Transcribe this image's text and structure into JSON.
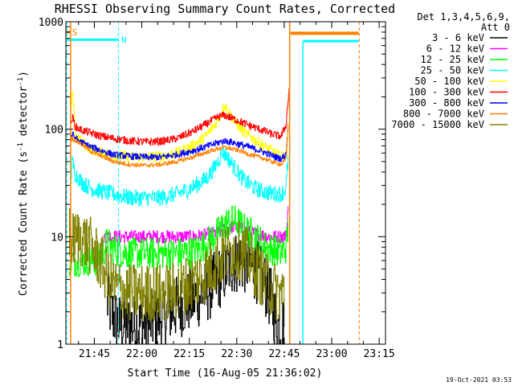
{
  "chart_data": {
    "type": "line",
    "title": "RHESSI Observing Summary Count Rates, Corrected",
    "xlabel": "Start Time (16-Aug-05 21:36:02)",
    "ylabel_main": "Corrected Count Rate (s",
    "ylabel_sup1": "-1",
    "ylabel_mid": " detector",
    "ylabel_sup2": "-1",
    "ylabel_end": ")",
    "x_unit": "minutes since 21:36:02",
    "xlim": [
      0,
      101
    ],
    "ylim": [
      1,
      1000
    ],
    "y_scale": "log",
    "x_ticks": [
      {
        "value": 9,
        "label": "21:45"
      },
      {
        "value": 24,
        "label": "22:00"
      },
      {
        "value": 39,
        "label": "22:15"
      },
      {
        "value": 54,
        "label": "22:30"
      },
      {
        "value": 69,
        "label": "22:45"
      },
      {
        "value": 84,
        "label": "23:00"
      },
      {
        "value": 99,
        "label": "23:15"
      }
    ],
    "y_ticks": [
      {
        "value": 1,
        "label": "1"
      },
      {
        "value": 10,
        "label": "10"
      },
      {
        "value": 100,
        "label": "100"
      },
      {
        "value": 1000,
        "label": "1000"
      }
    ],
    "legend": {
      "placement": "right",
      "header1": "Det 1,3,4,5,6,9,",
      "header2": "Att 0",
      "entries": [
        {
          "label": "3 - 6 keV",
          "color": "#000000"
        },
        {
          "label": "6 - 12 keV",
          "color": "#ff00ff"
        },
        {
          "label": "12 - 25 keV",
          "color": "#00ff00"
        },
        {
          "label": "25 - 50 keV",
          "color": "#00ffff"
        },
        {
          "label": "50 - 100 keV",
          "color": "#ffff00"
        },
        {
          "label": "100 - 300 keV",
          "color": "#ff0000"
        },
        {
          "label": "300 - 800 keV",
          "color": "#0000ff"
        },
        {
          "label": "800 - 7000 keV",
          "color": "#ff8000"
        },
        {
          "label": "7000 - 15000 keV",
          "color": "#808000"
        }
      ]
    },
    "flags": [
      {
        "label": "S",
        "color": "#ff8000",
        "x": [
          0.2,
          1.5
        ]
      },
      {
        "label": "N",
        "color": "#00ffff",
        "x": [
          0.5,
          16.5
        ]
      }
    ],
    "attenuator_bar": {
      "color": "#ff8000",
      "x": [
        71,
        92.5
      ],
      "y": 780
    },
    "saa_bar": {
      "color": "#00ffff",
      "x": [
        75,
        92.5
      ],
      "y": 660
    },
    "vlines": [
      {
        "x": 0.3,
        "color": "#00ffff",
        "style": "dashed"
      },
      {
        "x": 16.6,
        "color": "#00ffff",
        "style": "dashed"
      },
      {
        "x": 92.7,
        "color": "#ff8000",
        "style": "dashed"
      }
    ],
    "solid_vlines": [
      {
        "x": 1.5,
        "color": "#ff8000",
        "ymin": 1,
        "ymax": 1000
      },
      {
        "x": 70.7,
        "color": "#ff8000",
        "ymin": 1,
        "ymax": 1000
      },
      {
        "x": 74.9,
        "color": "#00ffff",
        "ymin": 1,
        "ymax": 660
      }
    ],
    "series": [
      {
        "name": "3 - 6 keV",
        "color": "#000000",
        "noise": 0.6,
        "x": [
          13,
          15,
          17,
          20,
          25,
          30,
          35,
          40,
          45,
          48,
          52,
          55,
          58,
          61,
          63,
          65,
          66,
          67,
          68,
          69
        ],
        "y": [
          2.5,
          1.8,
          1.5,
          1.5,
          1.5,
          1.8,
          2.2,
          2.6,
          3.2,
          4.0,
          5.5,
          6.0,
          5.5,
          4.5,
          3.5,
          2.5,
          1.8,
          1.5,
          1.5,
          1.5
        ]
      },
      {
        "name": "6 - 12 keV",
        "color": "#ff00ff",
        "noise": 0.12,
        "x": [
          12,
          15,
          20,
          25,
          30,
          35,
          40,
          45,
          48,
          51,
          53,
          55,
          58,
          61,
          64,
          67,
          69,
          69.8,
          70.3
        ],
        "y": [
          10,
          10,
          10,
          10,
          10,
          10,
          10,
          10.5,
          11,
          12,
          12.5,
          12,
          11,
          10.5,
          10,
          10,
          10,
          12,
          20
        ]
      },
      {
        "name": "12 - 25 keV",
        "color": "#00ff00",
        "noise": 0.3,
        "x": [
          1,
          5,
          8,
          10,
          12,
          13,
          14,
          16,
          20,
          25,
          30,
          35,
          40,
          43,
          46,
          48,
          50,
          52,
          54,
          56,
          58,
          60,
          63,
          66,
          68,
          69.5,
          70.2
        ],
        "y": [
          6,
          6,
          6,
          6,
          7.5,
          9,
          8,
          7.5,
          7,
          7,
          7,
          7,
          7.2,
          8,
          9.5,
          11,
          13,
          14,
          14,
          12,
          11,
          10,
          8,
          7.5,
          7,
          8,
          12
        ]
      },
      {
        "name": "25 - 50 keV",
        "color": "#00ffff",
        "noise": 0.15,
        "x": [
          1.5,
          2,
          3,
          5,
          8,
          10,
          12,
          15,
          20,
          25,
          30,
          35,
          38,
          41,
          44,
          46,
          48,
          49.5,
          51,
          53,
          55,
          57,
          60,
          63,
          66,
          68,
          69.5,
          70.3
        ],
        "y": [
          35,
          50,
          38,
          32,
          28,
          27,
          26,
          25,
          23,
          23,
          23,
          25,
          27,
          30,
          34,
          40,
          50,
          62,
          55,
          45,
          37,
          32,
          28,
          26,
          25,
          25,
          28,
          60
        ]
      },
      {
        "name": "50 - 100 keV",
        "color": "#ffff00",
        "noise": 0.1,
        "x": [
          1.5,
          2,
          3,
          5,
          8,
          10,
          12,
          15,
          20,
          25,
          30,
          35,
          40,
          44,
          47,
          49,
          50,
          51,
          53,
          56,
          60,
          63,
          66,
          68,
          69.5,
          70.3
        ],
        "y": [
          150,
          220,
          90,
          75,
          65,
          62,
          60,
          58,
          55,
          55,
          56,
          60,
          70,
          85,
          110,
          140,
          170,
          150,
          120,
          95,
          78,
          68,
          60,
          55,
          58,
          120
        ]
      },
      {
        "name": "100 - 300 keV",
        "color": "#ff0000",
        "noise": 0.07,
        "x": [
          1.5,
          2,
          3,
          5,
          8,
          10,
          12,
          15,
          20,
          25,
          30,
          35,
          40,
          45,
          48,
          50,
          52,
          55,
          58,
          62,
          65,
          68,
          69.5,
          70.5
        ],
        "y": [
          110,
          130,
          105,
          98,
          92,
          88,
          85,
          82,
          78,
          76,
          77,
          82,
          95,
          115,
          130,
          135,
          128,
          118,
          108,
          98,
          90,
          86,
          110,
          240
        ]
      },
      {
        "name": "300 - 800 keV",
        "color": "#0000ff",
        "noise": 0.06,
        "x": [
          1.5,
          2,
          3,
          5,
          8,
          12,
          15,
          20,
          25,
          30,
          35,
          40,
          45,
          48,
          50,
          52,
          55,
          58,
          62,
          65,
          68,
          69.5,
          70.3
        ],
        "y": [
          85,
          90,
          82,
          75,
          68,
          62,
          58,
          56,
          55,
          55,
          58,
          63,
          70,
          75,
          78,
          76,
          72,
          68,
          62,
          57,
          53,
          58,
          120
        ]
      },
      {
        "name": "800 - 7000 keV",
        "color": "#ff8000",
        "noise": 0.04,
        "x": [
          1.5,
          2,
          3,
          5,
          8,
          12,
          15,
          20,
          25,
          30,
          35,
          40,
          45,
          48,
          50,
          52,
          55,
          58,
          62,
          65,
          68,
          69.5,
          70.3
        ],
        "y": [
          80,
          82,
          78,
          72,
          62,
          55,
          50,
          47,
          46,
          47,
          50,
          55,
          62,
          66,
          68,
          66,
          63,
          58,
          54,
          50,
          47,
          52,
          130
        ]
      },
      {
        "name": "7000 - 15000 keV",
        "color": "#808000",
        "noise": 0.55,
        "x": [
          1,
          2,
          4,
          6,
          8,
          10,
          12,
          13,
          15,
          20,
          25,
          30,
          35,
          40,
          44,
          48,
          52,
          55,
          58,
          61,
          64,
          67,
          69
        ],
        "y": [
          11,
          9,
          10,
          9,
          8,
          6.5,
          5,
          4.2,
          3.5,
          3,
          3,
          3,
          3.2,
          3.8,
          4.5,
          6,
          7.5,
          7.5,
          6,
          4.5,
          3.5,
          3,
          3
        ]
      }
    ]
  },
  "timestamp": "19-Oct-2021 03:53"
}
